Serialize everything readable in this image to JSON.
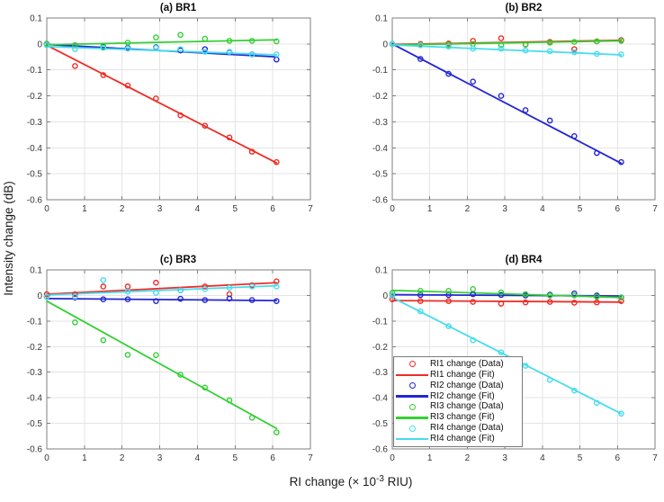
{
  "figure": {
    "xlabel": {
      "prefix": "RI change (× 10",
      "exp": "-3",
      "suffix": " RIU)"
    },
    "ylabel": "Intensity change (dB)"
  },
  "axes": {
    "xlim": [
      0,
      7
    ],
    "ylim": [
      -0.6,
      0.1
    ],
    "xticks": [
      0,
      1,
      2,
      3,
      4,
      5,
      6,
      7
    ],
    "yticks": [
      0.1,
      0,
      -0.1,
      -0.2,
      -0.3,
      -0.4,
      -0.5,
      -0.6
    ],
    "grid": true
  },
  "colors": {
    "RI1": "#ee2d26",
    "RI2": "#2326d3",
    "RI3": "#35cf35",
    "RI4": "#46dcee",
    "grid": "#e4e4e4",
    "frame": "#7f7f7f",
    "tick_text": "#373737"
  },
  "chart_data": [
    {
      "id": "a",
      "type": "scatter-line",
      "title": "(a) BR1",
      "x": [
        0,
        0.75,
        1.5,
        2.15,
        2.9,
        3.55,
        4.2,
        4.85,
        5.45,
        6.1
      ],
      "series": [
        {
          "id": "RI1",
          "name": "RI1 change",
          "y": [
            0,
            -0.085,
            -0.12,
            -0.16,
            -0.21,
            -0.275,
            -0.315,
            -0.36,
            -0.415,
            -0.455
          ],
          "fit": {
            "x0": 0,
            "x1": 6.1,
            "y0": -0.005,
            "y1": -0.458
          }
        },
        {
          "id": "RI2",
          "name": "RI2 change",
          "y": [
            0,
            -0.005,
            -0.012,
            -0.015,
            -0.013,
            -0.025,
            -0.02,
            -0.032,
            -0.04,
            -0.06
          ],
          "fit": {
            "x0": 0,
            "x1": 6.1,
            "y0": -0.002,
            "y1": -0.05
          }
        },
        {
          "id": "RI3",
          "name": "RI3 change",
          "y": [
            0,
            -0.005,
            -0.008,
            0.005,
            0.025,
            0.035,
            0.02,
            0.012,
            0.012,
            0.01
          ],
          "fit": {
            "x0": 0,
            "x1": 6.1,
            "y0": -0.003,
            "y1": 0.016
          }
        },
        {
          "id": "RI4",
          "name": "RI4 change",
          "y": [
            -0.005,
            -0.02,
            -0.015,
            -0.018,
            -0.015,
            -0.02,
            -0.03,
            -0.03,
            -0.04,
            -0.04
          ],
          "fit": {
            "x0": 0,
            "x1": 6.1,
            "y0": -0.01,
            "y1": -0.042
          }
        }
      ]
    },
    {
      "id": "b",
      "type": "scatter-line",
      "title": "(b) BR2",
      "x": [
        0,
        0.75,
        1.5,
        2.15,
        2.9,
        3.55,
        4.2,
        4.85,
        5.45,
        6.1
      ],
      "series": [
        {
          "id": "RI1",
          "name": "RI1 change",
          "y": [
            0,
            0,
            0.002,
            0.012,
            0.022,
            -0.002,
            0.008,
            -0.02,
            0.01,
            0.015
          ],
          "fit": {
            "x0": 0,
            "x1": 6.1,
            "y0": -0.002,
            "y1": 0.014
          }
        },
        {
          "id": "RI2",
          "name": "RI2 change",
          "y": [
            0,
            -0.058,
            -0.115,
            -0.145,
            -0.2,
            -0.255,
            -0.295,
            -0.355,
            -0.42,
            -0.455
          ],
          "fit": {
            "x0": 0,
            "x1": 6.1,
            "y0": 0,
            "y1": -0.46
          }
        },
        {
          "id": "RI3",
          "name": "RI3 change",
          "y": [
            0,
            -0.003,
            -0.003,
            0,
            -0.005,
            -0.003,
            0.005,
            0.008,
            0.01,
            0.012
          ],
          "fit": {
            "x0": 0,
            "x1": 6.1,
            "y0": -0.004,
            "y1": 0.012
          }
        },
        {
          "id": "RI4",
          "name": "RI4 change",
          "y": [
            0,
            -0.005,
            -0.01,
            -0.018,
            -0.018,
            -0.025,
            -0.028,
            -0.032,
            -0.038,
            -0.04
          ],
          "fit": {
            "x0": 0,
            "x1": 6.1,
            "y0": -0.004,
            "y1": -0.042
          }
        }
      ]
    },
    {
      "id": "c",
      "type": "scatter-line",
      "title": "(c) BR3",
      "x": [
        0,
        0.75,
        1.5,
        2.15,
        2.9,
        3.55,
        4.2,
        4.85,
        5.45,
        6.1
      ],
      "series": [
        {
          "id": "RI1",
          "name": "RI1 change",
          "y": [
            0.005,
            0.005,
            0.035,
            0.035,
            0.05,
            0.02,
            0.035,
            0.005,
            0.04,
            0.055
          ],
          "fit": {
            "x0": 0,
            "x1": 6.1,
            "y0": 0.005,
            "y1": 0.05
          }
        },
        {
          "id": "RI2",
          "name": "RI2 change",
          "y": [
            -0.005,
            -0.008,
            -0.015,
            -0.015,
            -0.022,
            -0.013,
            -0.018,
            -0.012,
            -0.018,
            -0.022
          ],
          "fit": {
            "x0": 0,
            "x1": 6.1,
            "y0": -0.012,
            "y1": -0.02
          }
        },
        {
          "id": "RI3",
          "name": "RI3 change",
          "y": [
            -0.005,
            -0.105,
            -0.175,
            -0.232,
            -0.233,
            -0.31,
            -0.36,
            -0.41,
            -0.478,
            -0.535
          ],
          "fit": {
            "x0": 0,
            "x1": 6.1,
            "y0": -0.022,
            "y1": -0.52
          }
        },
        {
          "id": "RI4",
          "name": "RI4 change",
          "y": [
            -0.005,
            -0.005,
            0.06,
            0.015,
            0.01,
            0.02,
            0.025,
            0.03,
            0.035,
            0.035
          ],
          "fit": {
            "x0": 0,
            "x1": 6.1,
            "y0": 0.002,
            "y1": 0.038
          }
        }
      ]
    },
    {
      "id": "d",
      "type": "scatter-line",
      "title": "(d) BR4",
      "x": [
        0,
        0.75,
        1.5,
        2.15,
        2.9,
        3.55,
        4.2,
        4.85,
        5.45,
        6.1
      ],
      "series": [
        {
          "id": "RI1",
          "name": "RI1 change",
          "y": [
            -0.015,
            -0.022,
            -0.022,
            -0.025,
            -0.032,
            -0.027,
            -0.025,
            -0.028,
            -0.027,
            -0.022
          ],
          "fit": {
            "x0": 0,
            "x1": 6.1,
            "y0": -0.02,
            "y1": -0.026
          }
        },
        {
          "id": "RI2",
          "name": "RI2 change",
          "y": [
            0,
            0.002,
            0.002,
            0.005,
            0.002,
            0,
            0.003,
            0.008,
            0,
            -0.008
          ],
          "fit": {
            "x0": 0,
            "x1": 6.1,
            "y0": 0.003,
            "y1": -0.002
          }
        },
        {
          "id": "RI3",
          "name": "RI3 change",
          "y": [
            0.01,
            0.018,
            0.018,
            0.025,
            0.012,
            0.005,
            0,
            0,
            -0.005,
            -0.008
          ],
          "fit": {
            "x0": 0,
            "x1": 6.1,
            "y0": 0.02,
            "y1": -0.008
          }
        },
        {
          "id": "RI4",
          "name": "RI4 change",
          "y": [
            0,
            -0.062,
            -0.12,
            -0.175,
            -0.222,
            -0.275,
            -0.33,
            -0.372,
            -0.42,
            -0.462
          ],
          "fit": {
            "x0": 0,
            "x1": 6.1,
            "y0": -0.008,
            "y1": -0.462
          }
        }
      ]
    }
  ],
  "legend": {
    "entries": [
      {
        "series": "RI1",
        "type": "marker",
        "label": "RI1 change (Data)"
      },
      {
        "series": "RI1",
        "type": "line",
        "label": "RI1 change (Fit)"
      },
      {
        "series": "RI2",
        "type": "marker",
        "label": "RI2 change (Data)"
      },
      {
        "series": "RI2",
        "type": "line",
        "label": "RI2 change (Fit)"
      },
      {
        "series": "RI3",
        "type": "marker",
        "label": "RI3 change (Data)"
      },
      {
        "series": "RI3",
        "type": "line",
        "label": "RI3 change (Fit)"
      },
      {
        "series": "RI4",
        "type": "marker",
        "label": "RI4 change (Data)"
      },
      {
        "series": "RI4",
        "type": "line",
        "label": "RI4 change (Fit)"
      }
    ]
  }
}
